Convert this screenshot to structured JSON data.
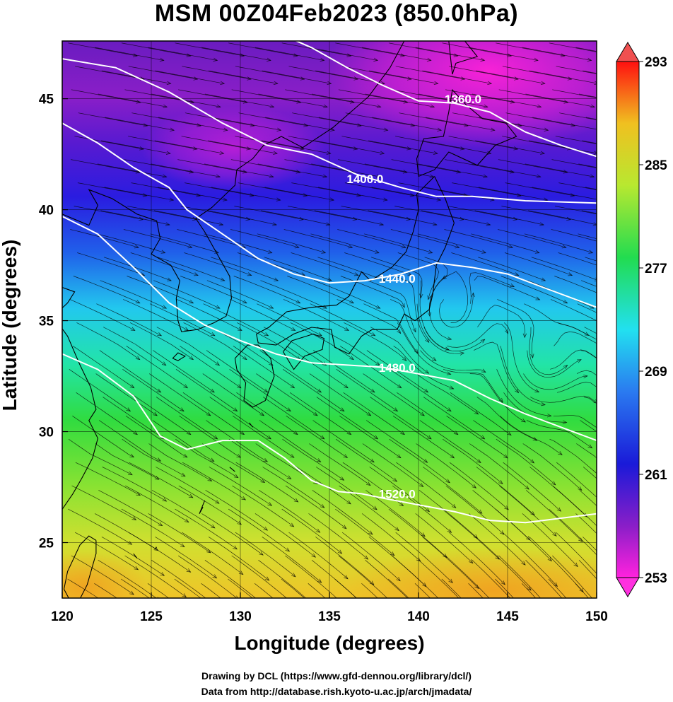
{
  "title": "MSM 00Z04Feb2023 (850.0hPa)",
  "xlabel": "Longitude (degrees)",
  "ylabel": "Latitude  (degrees)",
  "credits": [
    "Drawing by DCL (https://www.gfd-dennou.org/library/dcl/)",
    "Data from http://database.rish.kyoto-u.ac.jp/arch/jmadata/"
  ],
  "colors": {
    "colormap": [
      "#ff22dd",
      "#7a1ec8",
      "#1a1ad8",
      "#2a7af0",
      "#22e0f0",
      "#22dc50",
      "#b8e830",
      "#f0c020",
      "#ff1010"
    ],
    "contour": "#ffffff",
    "streamline": "#000000"
  },
  "map": {
    "lon_ticks": [
      "120",
      "125",
      "130",
      "135",
      "140",
      "145",
      "150"
    ],
    "lat_ticks": [
      "25",
      "30",
      "35",
      "40",
      "45"
    ],
    "lon_range": [
      120,
      150
    ],
    "lat_range": [
      22.5,
      47.6
    ],
    "grid": true
  },
  "colorbar": {
    "ticks": [
      "293",
      "285",
      "277",
      "269",
      "261",
      "253"
    ],
    "range": [
      253,
      293
    ],
    "extend": "both"
  },
  "contours": [
    {
      "label": "1360.0",
      "label_lon": 142.5,
      "label_lat": 44.8
    },
    {
      "label": "1400.0",
      "label_lon": 137.0,
      "label_lat": 41.2
    },
    {
      "label": "1440.0",
      "label_lon": 138.8,
      "label_lat": 36.7
    },
    {
      "label": "1480.0",
      "label_lon": 138.8,
      "label_lat": 32.7
    },
    {
      "label": "1520.0",
      "label_lon": 138.8,
      "label_lat": 27.0
    }
  ]
}
